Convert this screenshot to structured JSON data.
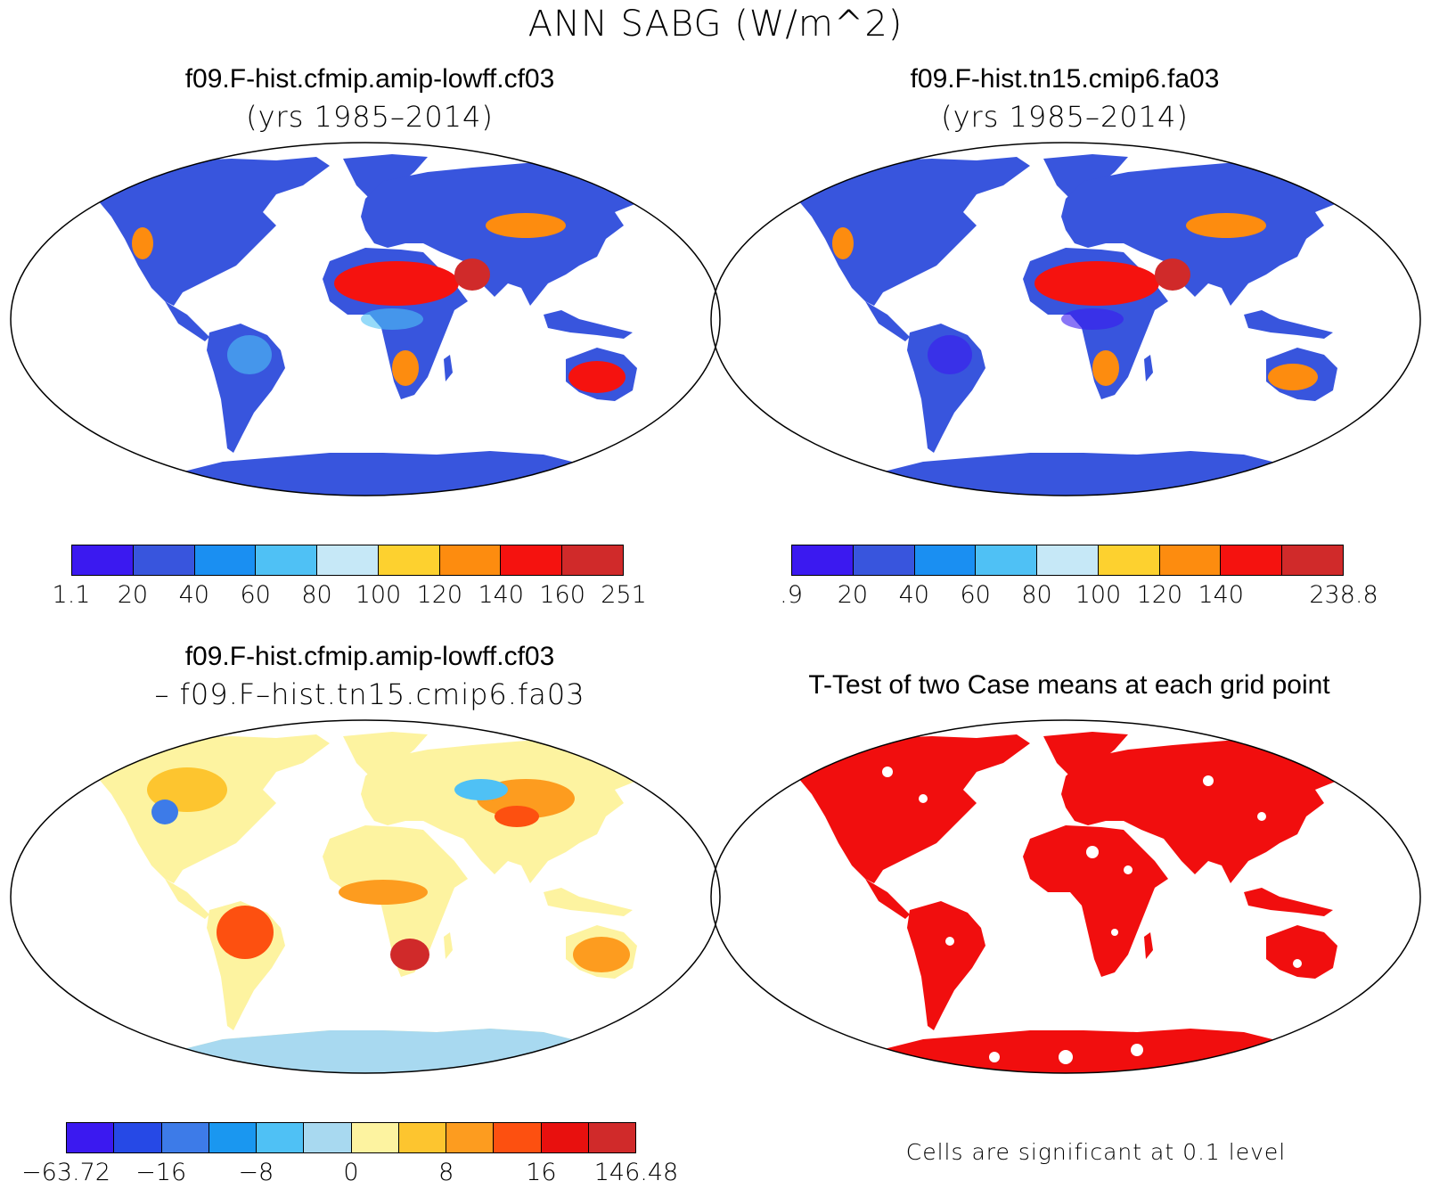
{
  "title": "ANN SABG (W/m^2)",
  "panels": [
    {
      "id": "case1",
      "title": "f09.F-hist.cfmip.amip-lowff.cf03",
      "subtitle": "(yrs 1985–2014)",
      "colorbar": {
        "colors": [
          "#3b19f0",
          "#3855dd",
          "#1a8ff2",
          "#4fc1f5",
          "#c6e8f7",
          "#fdd12f",
          "#fd8c0f",
          "#f5120f",
          "#d02a2a"
        ],
        "tick_labels": [
          "1.1",
          "20",
          "40",
          "60",
          "80",
          "100",
          "120",
          "140",
          "160",
          "251"
        ]
      }
    },
    {
      "id": "case2",
      "title": "f09.F-hist.tn15.cmip6.fa03",
      "subtitle": "(yrs 1985–2014)",
      "colorbar": {
        "colors": [
          "#3b19f0",
          "#3855dd",
          "#1a8ff2",
          "#4fc1f5",
          "#c6e8f7",
          "#fdd12f",
          "#fd8c0f",
          "#f5120f",
          "#d02a2a"
        ],
        "tick_labels": [
          ".9",
          "20",
          "40",
          "60",
          "80",
          "100",
          "120",
          "140",
          "238.8"
        ]
      }
    },
    {
      "id": "difference",
      "title": "f09.F-hist.cfmip.amip-lowff.cf03",
      "subtitle": "– f09.F–hist.tn15.cmip6.fa03",
      "colorbar": {
        "colors": [
          "#3b19f0",
          "#2649e6",
          "#3d7be8",
          "#1a97f0",
          "#4fc1f5",
          "#a8d9f0",
          "#fdf3a0",
          "#fdc52f",
          "#fd9c1f",
          "#fd5010",
          "#e8100e",
          "#d02a2a"
        ],
        "tick_labels": [
          "−63.72",
          "−16",
          "−8",
          "0",
          "8",
          "16",
          "146.48"
        ]
      }
    },
    {
      "id": "ttest",
      "title": "T-Test of two Case means at each grid point",
      "footnote": "Cells are significant at 0.1 level",
      "significant_color": "#f10e0e"
    }
  ]
}
